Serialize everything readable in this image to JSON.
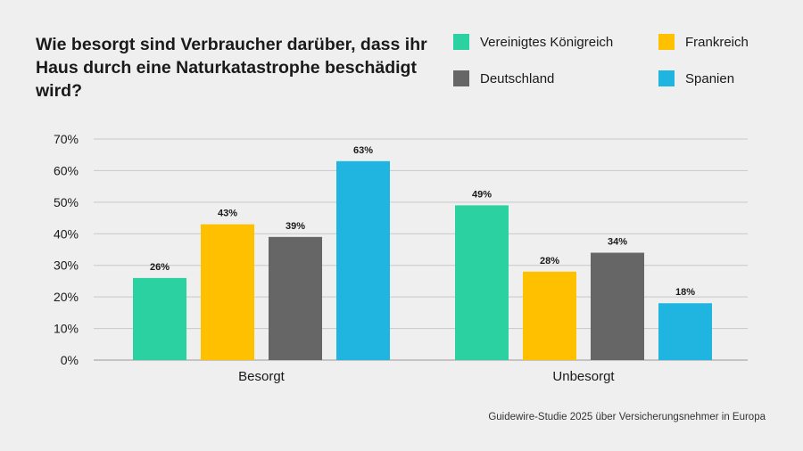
{
  "source": "Guidewire-Studie 2025 über Versicherungsnehmer in Europa",
  "chart_data": {
    "type": "bar",
    "title": "Wie besorgt sind Verbraucher darüber, dass ihr Haus durch eine Naturkatastrophe beschädigt wird?",
    "categories": [
      "Besorgt",
      "Unbesorgt"
    ],
    "series": [
      {
        "name": "Vereinigtes Königreich",
        "color": "#2bd1a0",
        "values": [
          26,
          49
        ]
      },
      {
        "name": "Frankreich",
        "color": "#ffc000",
        "values": [
          43,
          28
        ]
      },
      {
        "name": "Deutschland",
        "color": "#666666",
        "values": [
          39,
          34
        ]
      },
      {
        "name": "Spanien",
        "color": "#1fb5e0",
        "values": [
          63,
          18
        ]
      }
    ],
    "value_suffix": "%",
    "y_ticks": [
      "0%",
      "10%",
      "20%",
      "30%",
      "40%",
      "50%",
      "60%",
      "70%"
    ],
    "ylim": [
      0,
      70
    ],
    "grid": true,
    "legend_position": "top-right"
  }
}
